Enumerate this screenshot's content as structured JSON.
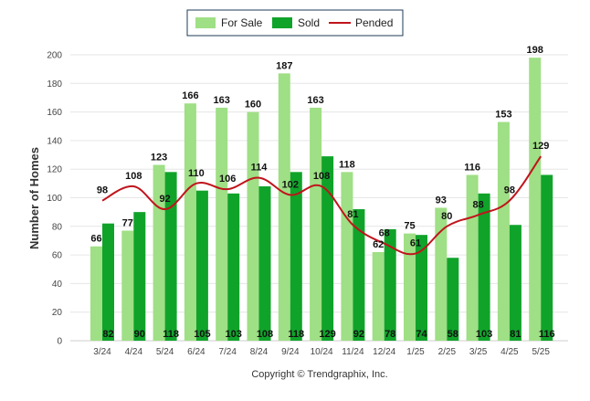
{
  "chart_data": {
    "type": "bar",
    "ylabel": "Number of Homes",
    "ylim": [
      0,
      200
    ],
    "yticks": [
      0,
      20,
      40,
      60,
      80,
      100,
      120,
      140,
      160,
      180,
      200
    ],
    "categories": [
      "3/24",
      "4/24",
      "5/24",
      "6/24",
      "7/24",
      "8/24",
      "9/24",
      "10/24",
      "11/24",
      "12/24",
      "1/25",
      "2/25",
      "3/25",
      "4/25",
      "5/25"
    ],
    "series": [
      {
        "name": "For Sale",
        "kind": "bar",
        "color": "#9fdf85",
        "values": [
          66,
          77,
          123,
          166,
          163,
          160,
          187,
          163,
          118,
          62,
          75,
          93,
          116,
          153,
          198
        ]
      },
      {
        "name": "Sold",
        "kind": "bar",
        "color": "#10a32a",
        "values": [
          82,
          90,
          118,
          105,
          103,
          108,
          118,
          129,
          92,
          78,
          74,
          58,
          103,
          81,
          116
        ]
      },
      {
        "name": "Pended",
        "kind": "line",
        "color": "#c0141c",
        "values": [
          98,
          108,
          92,
          110,
          106,
          114,
          102,
          108,
          81,
          68,
          61,
          80,
          88,
          98,
          129
        ]
      }
    ],
    "legend_position": "top-center",
    "grid": true,
    "footer": "Copyright © Trendgraphix, Inc."
  }
}
